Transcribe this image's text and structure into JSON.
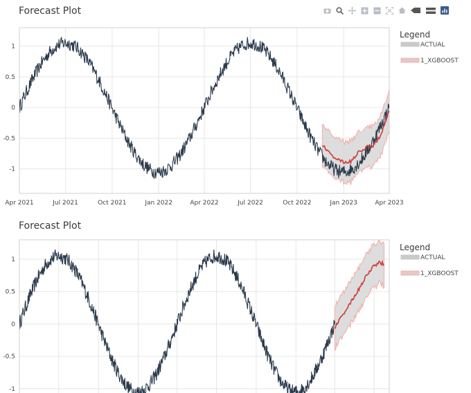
{
  "colors": {
    "actual_line": "#2b3a4c",
    "forecast_line": "#cf3b36",
    "band_fill": "#d7d7d7",
    "band_edge": "#f0b3b0",
    "grid": "#e6e6e6",
    "modebar_icon": "#b8bcc4",
    "modebar_active": "#3a5b8c"
  },
  "modebar": {
    "icons": [
      "camera-icon",
      "zoom-icon",
      "pan-icon",
      "zoom-in-icon",
      "zoom-out-icon",
      "autoscale-icon",
      "home-icon",
      "spike-lines-icon",
      "compare-hover-icon",
      "plotly-logo-icon"
    ]
  },
  "chart_data": [
    {
      "type": "line",
      "title": "Forecast Plot",
      "xlabel": "",
      "ylabel": "",
      "x_ticks": [
        "Apr 2021",
        "Jul 2021",
        "Oct 2021",
        "Jan 2022",
        "Apr 2022",
        "Jul 2022",
        "Oct 2022",
        "Jan 2023",
        "Apr 2023"
      ],
      "y_ticks": [
        "1",
        "0.5",
        "0",
        "-0.5",
        "-1"
      ],
      "ylim": [
        -1.4,
        1.3
      ],
      "xlim": [
        "2021-04-01",
        "2023-04-01"
      ],
      "grid": true,
      "legend": {
        "title": "Legend",
        "placement": "right",
        "entries": [
          "ACTUAL",
          "1_XGBOOST"
        ]
      },
      "series": [
        {
          "name": "ACTUAL",
          "model": "sinusoid",
          "period_days": 365,
          "peak_date": "2021-07-01",
          "amplitude": 1.05,
          "noise": 0.07,
          "start": "2021-04-01",
          "end": "2023-04-01"
        },
        {
          "name": "1_XGBOOST",
          "start": "2022-11-20",
          "points": [
            [
              "2022-11-20",
              -0.6
            ],
            [
              "2022-12-01",
              -0.72
            ],
            [
              "2022-12-15",
              -0.82
            ],
            [
              "2023-01-01",
              -0.9
            ],
            [
              "2023-01-15",
              -0.88
            ],
            [
              "2023-02-01",
              -0.72
            ],
            [
              "2023-02-15",
              -0.65
            ],
            [
              "2023-03-01",
              -0.62
            ],
            [
              "2023-03-15",
              -0.45
            ],
            [
              "2023-04-01",
              -0.05
            ]
          ],
          "band_width": 0.33
        }
      ]
    },
    {
      "type": "line",
      "title": "Forecast Plot",
      "xlabel": "",
      "ylabel": "",
      "x_ticks": [],
      "y_ticks": [
        "1",
        "0.5",
        "0",
        "-0.5",
        "-1"
      ],
      "ylim": [
        -1.12,
        1.3
      ],
      "grid": true,
      "legend": {
        "title": "Legend",
        "placement": "right",
        "entries": [
          "ACTUAL",
          "1_XGBOOST"
        ]
      },
      "series": [
        {
          "name": "ACTUAL",
          "model": "sinusoid",
          "period_days": 365,
          "peak_date": "2021-07-01",
          "amplitude": 1.05,
          "noise": 0.07,
          "start": "2021-04-01",
          "end": "2023-04-01"
        },
        {
          "name": "1_XGBOOST",
          "start": "2023-04-01",
          "points": [
            [
              "2023-04-01",
              -0.05
            ],
            [
              "2023-04-20",
              0.15
            ],
            [
              "2023-05-10",
              0.35
            ],
            [
              "2023-06-01",
              0.6
            ],
            [
              "2023-06-20",
              0.82
            ],
            [
              "2023-07-10",
              0.95
            ],
            [
              "2023-07-25",
              0.93
            ]
          ],
          "band_width": 0.33
        }
      ]
    }
  ]
}
